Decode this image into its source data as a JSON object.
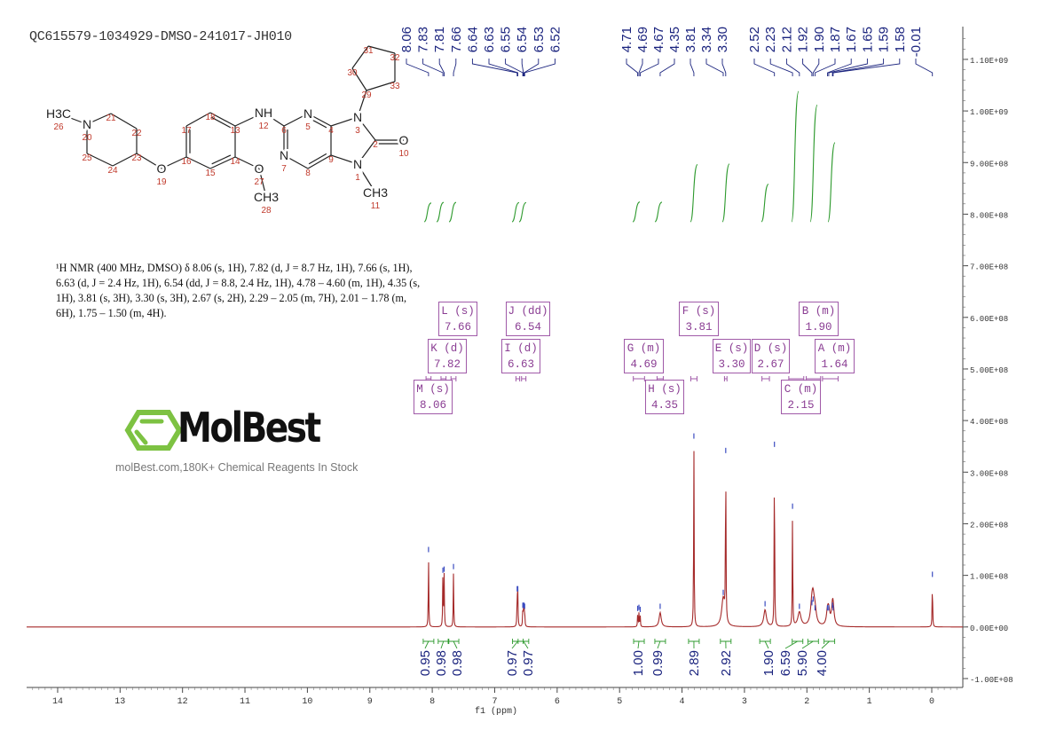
{
  "sample_title": "QC615579-1034929-DMSO-241017-JH010",
  "nmr_description": "¹H NMR (400 MHz, DMSO) δ 8.06 (s, 1H), 7.82 (d, J = 8.7 Hz, 1H), 7.66 (s, 1H), 6.63 (d, J = 2.4 Hz, 1H), 6.54 (dd, J = 8.8, 2.4 Hz, 1H), 4.78 – 4.60 (m, 1H), 4.35 (s, 1H), 3.81 (s, 3H), 3.30 (s, 3H), 2.67 (s, 2H), 2.29 – 2.05 (m, 7H), 2.01 – 1.78 (m, 6H), 1.75 – 1.50 (m, 4H).",
  "watermark": {
    "logo_text": "MolBest",
    "tagline": "molBest.com,180K+ Chemical Reagents In Stock",
    "logo_color": "#7dc242"
  },
  "structure": {
    "atoms": [
      {
        "n": "1",
        "label": "N"
      },
      {
        "n": "2",
        "label": ""
      },
      {
        "n": "3",
        "label": "N"
      },
      {
        "n": "4",
        "label": ""
      },
      {
        "n": "5",
        "label": "N"
      },
      {
        "n": "6",
        "label": ""
      },
      {
        "n": "7",
        "label": "N"
      },
      {
        "n": "8",
        "label": ""
      },
      {
        "n": "9",
        "label": ""
      },
      {
        "n": "10",
        "label": "O"
      },
      {
        "n": "11",
        "label": "CH3"
      },
      {
        "n": "12",
        "label": "NH"
      },
      {
        "n": "13",
        "label": ""
      },
      {
        "n": "14",
        "label": ""
      },
      {
        "n": "15",
        "label": ""
      },
      {
        "n": "16",
        "label": ""
      },
      {
        "n": "17",
        "label": ""
      },
      {
        "n": "18",
        "label": ""
      },
      {
        "n": "19",
        "label": "O"
      },
      {
        "n": "20",
        "label": "N"
      },
      {
        "n": "21",
        "label": ""
      },
      {
        "n": "22",
        "label": ""
      },
      {
        "n": "23",
        "label": ""
      },
      {
        "n": "24",
        "label": ""
      },
      {
        "n": "25",
        "label": ""
      },
      {
        "n": "26",
        "label": "H3C"
      },
      {
        "n": "27",
        "label": "O"
      },
      {
        "n": "28",
        "label": "CH3"
      },
      {
        "n": "29",
        "label": ""
      },
      {
        "n": "30",
        "label": ""
      },
      {
        "n": "31",
        "label": ""
      },
      {
        "n": "32",
        "label": ""
      },
      {
        "n": "33",
        "label": ""
      }
    ]
  },
  "chart_data": {
    "type": "line",
    "xlabel": "f1 (ppm)",
    "xlim": [
      14.5,
      -0.45
    ],
    "x_reversed": true,
    "x_ticks": [
      "14",
      "13",
      "12",
      "11",
      "10",
      "9",
      "8",
      "7",
      "6",
      "5",
      "4",
      "3",
      "2",
      "1",
      "0"
    ],
    "ylim": [
      -100000000.0,
      1100000000.0
    ],
    "y_ticks": [
      "1.10E+09",
      "1.00E+09",
      "9.00E+08",
      "8.00E+08",
      "7.00E+08",
      "6.00E+08",
      "5.00E+08",
      "4.00E+08",
      "3.00E+08",
      "2.00E+08",
      "1.00E+08",
      "0.00E+00",
      "-1.00E+08"
    ],
    "y_axis_position": "right",
    "grid": false,
    "colors": {
      "spectrum": "#a52a2a",
      "integral": "#2e9a2e",
      "peak_label": "#1a237e",
      "multiplet": "#a05aa8"
    },
    "peaks": [
      {
        "ppm": 8.06,
        "intensity": 138000000.0
      },
      {
        "ppm": 7.83,
        "intensity": 98000000.0
      },
      {
        "ppm": 7.81,
        "intensity": 100000000.0
      },
      {
        "ppm": 7.66,
        "intensity": 105000000.0
      },
      {
        "ppm": 6.64,
        "intensity": 62000000.0
      },
      {
        "ppm": 6.63,
        "intensity": 62000000.0
      },
      {
        "ppm": 6.55,
        "intensity": 30000000.0
      },
      {
        "ppm": 6.54,
        "intensity": 30000000.0
      },
      {
        "ppm": 6.53,
        "intensity": 30000000.0
      },
      {
        "ppm": 6.52,
        "intensity": 28000000.0
      },
      {
        "ppm": 4.71,
        "intensity": 24000000.0
      },
      {
        "ppm": 4.69,
        "intensity": 26000000.0
      },
      {
        "ppm": 4.67,
        "intensity": 22000000.0
      },
      {
        "ppm": 4.35,
        "intensity": 28000000.0
      },
      {
        "ppm": 3.81,
        "intensity": 358000000.0
      },
      {
        "ppm": 3.34,
        "intensity": 55000000.0
      },
      {
        "ppm": 3.3,
        "intensity": 330000000.0
      },
      {
        "ppm": 2.67,
        "intensity": 33000000.0
      },
      {
        "ppm": 2.52,
        "intensity": 342000000.0
      },
      {
        "ppm": 2.23,
        "intensity": 222000000.0
      },
      {
        "ppm": 2.12,
        "intensity": 28000000.0
      },
      {
        "ppm": 1.92,
        "intensity": 35000000.0
      },
      {
        "ppm": 1.9,
        "intensity": 42000000.0
      },
      {
        "ppm": 1.87,
        "intensity": 25000000.0
      },
      {
        "ppm": 1.67,
        "intensity": 25000000.0
      },
      {
        "ppm": 1.65,
        "intensity": 25000000.0
      },
      {
        "ppm": 1.59,
        "intensity": 30000000.0
      },
      {
        "ppm": 1.58,
        "intensity": 25000000.0
      },
      {
        "ppm": -0.01,
        "intensity": 90000000.0
      }
    ],
    "peak_labels": [
      "8.06",
      "7.83",
      "7.81",
      "7.66",
      "6.64",
      "6.63",
      "6.55",
      "6.54",
      "6.53",
      "6.52",
      "4.71",
      "4.69",
      "4.67",
      "4.35",
      "3.81",
      "3.34",
      "3.30",
      "2.52",
      "2.23",
      "2.12",
      "1.92",
      "1.90",
      "1.87",
      "1.67",
      "1.65",
      "1.59",
      "1.58",
      "-0.01"
    ],
    "integrals": [
      {
        "ppm": 8.06,
        "value": "0.95"
      },
      {
        "ppm": 7.82,
        "value": "0.98"
      },
      {
        "ppm": 7.66,
        "value": "0.98"
      },
      {
        "ppm": 6.63,
        "value": "0.97"
      },
      {
        "ppm": 6.54,
        "value": "0.97"
      },
      {
        "ppm": 4.69,
        "value": "1.00"
      },
      {
        "ppm": 4.35,
        "value": "0.99"
      },
      {
        "ppm": 3.81,
        "value": "2.89"
      },
      {
        "ppm": 3.3,
        "value": "2.92"
      },
      {
        "ppm": 2.67,
        "value": "1.90"
      },
      {
        "ppm": 2.15,
        "value": "6.59"
      },
      {
        "ppm": 1.9,
        "value": "5.90"
      },
      {
        "ppm": 1.64,
        "value": "4.00"
      }
    ],
    "multiplets": [
      {
        "id": "L",
        "type": "L (s)",
        "shift": "7.66",
        "range_ppm": [
          7.7,
          7.62
        ]
      },
      {
        "id": "J",
        "type": "J (dd)",
        "shift": "6.54",
        "range_ppm": [
          6.57,
          6.5
        ]
      },
      {
        "id": "K",
        "type": "K (d)",
        "shift": "7.82",
        "range_ppm": [
          7.86,
          7.78
        ]
      },
      {
        "id": "I",
        "type": "I (d)",
        "shift": "6.63",
        "range_ppm": [
          6.66,
          6.6
        ]
      },
      {
        "id": "M",
        "type": "M (s)",
        "shift": "8.06",
        "range_ppm": [
          8.1,
          8.02
        ]
      },
      {
        "id": "G",
        "type": "G (m)",
        "shift": "4.69",
        "range_ppm": [
          4.78,
          4.6
        ]
      },
      {
        "id": "H",
        "type": "H (s)",
        "shift": "4.35",
        "range_ppm": [
          4.4,
          4.3
        ]
      },
      {
        "id": "F",
        "type": "F (s)",
        "shift": "3.81",
        "range_ppm": [
          3.86,
          3.76
        ]
      },
      {
        "id": "E",
        "type": "E (s)",
        "shift": "3.30",
        "range_ppm": [
          3.32,
          3.28
        ]
      },
      {
        "id": "D",
        "type": "D (s)",
        "shift": "2.67",
        "range_ppm": [
          2.72,
          2.6
        ]
      },
      {
        "id": "B",
        "type": "B (m)",
        "shift": "1.90",
        "range_ppm": [
          2.01,
          1.78
        ]
      },
      {
        "id": "A",
        "type": "A (m)",
        "shift": "1.64",
        "range_ppm": [
          1.75,
          1.5
        ]
      },
      {
        "id": "C",
        "type": "C (m)",
        "shift": "2.15",
        "range_ppm": [
          2.29,
          2.05
        ]
      }
    ]
  }
}
